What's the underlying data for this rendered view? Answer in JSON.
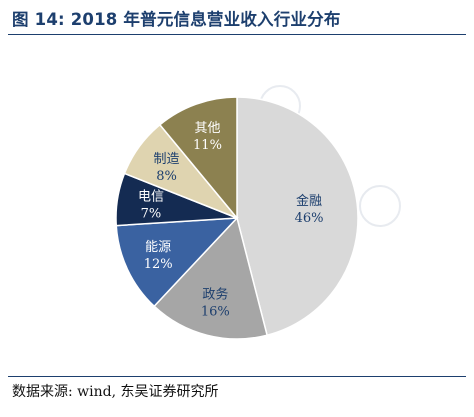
{
  "header": {
    "title": "图 14:  2018 年普元信息营业收入行业分布"
  },
  "source": {
    "text": "数据来源:  wind, 东吴证券研究所"
  },
  "colors": {
    "title": "#1d3f6e",
    "rule": "#1d3f6e"
  },
  "chart_data": {
    "type": "pie",
    "start_angle_deg": 0,
    "direction": "clockwise",
    "slices": [
      {
        "label": "金融",
        "pct_label": "46%",
        "value": 46,
        "color": "#d9d9d9",
        "text_color": "#1d3f6e"
      },
      {
        "label": "政务",
        "pct_label": "16%",
        "value": 16,
        "color": "#a6a6a6",
        "text_color": "#1d3f6e"
      },
      {
        "label": "能源",
        "pct_label": "12%",
        "value": 12,
        "color": "#3a62a1",
        "text_color": "#ffffff"
      },
      {
        "label": "电信",
        "pct_label": "7%",
        "value": 7,
        "color": "#142b52",
        "text_color": "#ffffff"
      },
      {
        "label": "制造",
        "pct_label": "8%",
        "value": 8,
        "color": "#dfd4b0",
        "text_color": "#1d3f6e"
      },
      {
        "label": "其他",
        "pct_label": "11%",
        "value": 11,
        "color": "#8c8150",
        "text_color": "#ffffff"
      }
    ]
  }
}
